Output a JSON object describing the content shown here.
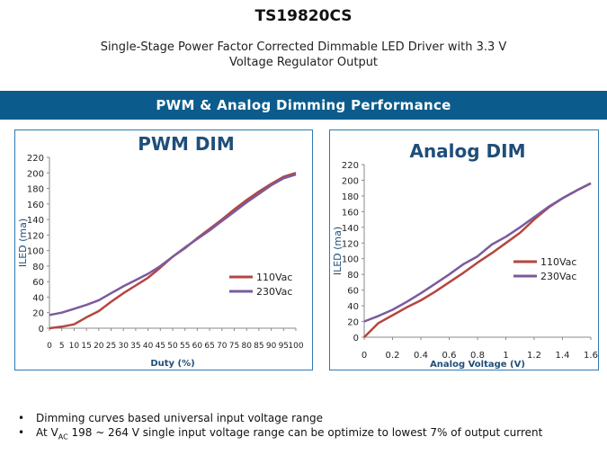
{
  "header": {
    "title": "TS19820CS",
    "subtitle_line1": "Single-Stage Power Factor Corrected Dimmable  LED Driver with 3.3 V",
    "subtitle_line2": "Voltage Regulator Output"
  },
  "banner": {
    "text": "PWM & Analog Dimming Performance"
  },
  "colors": {
    "banner": "#0b5c8c",
    "series_110": "#b5463f",
    "series_230": "#7b5b9e",
    "chart_title": "#1f4e79",
    "border": "#2a7bb5"
  },
  "bullets": {
    "item1": "Dimming curves based universal input voltage range",
    "item2_pre": "At V",
    "item2_sub": "AC",
    "item2_post": " 198 ~ 264 V single input voltage range can be optimize to lowest 7% of output current"
  },
  "chart_data": [
    {
      "type": "line",
      "title": "PWM DIM",
      "xlabel": "Duty (%)",
      "ylabel": "ILED (ma)",
      "xlim": [
        0,
        100
      ],
      "ylim": [
        0,
        220
      ],
      "x_ticks": [
        0,
        5,
        10,
        15,
        20,
        25,
        30,
        35,
        40,
        45,
        50,
        55,
        60,
        65,
        70,
        75,
        80,
        85,
        90,
        95,
        100
      ],
      "y_ticks": [
        0,
        20,
        40,
        60,
        80,
        100,
        120,
        140,
        160,
        180,
        200,
        220
      ],
      "x_tick_labels": [
        "0",
        "5",
        "10",
        "15",
        "20",
        "25",
        "30",
        "35",
        "40",
        "45",
        "50",
        "55",
        "60",
        "65",
        "70",
        "75",
        "80",
        "85",
        "90",
        "95",
        "100"
      ],
      "legend_position": "right",
      "series": [
        {
          "name": "110Vac",
          "x": [
            0,
            5,
            10,
            15,
            20,
            25,
            30,
            35,
            40,
            45,
            50,
            55,
            60,
            65,
            70,
            75,
            80,
            85,
            90,
            95,
            100
          ],
          "values": [
            0,
            2,
            5,
            14,
            22,
            34,
            45,
            55,
            65,
            78,
            92,
            103,
            116,
            128,
            140,
            153,
            165,
            176,
            186,
            195,
            200
          ]
        },
        {
          "name": "230Vac",
          "x": [
            0,
            5,
            10,
            15,
            20,
            25,
            30,
            35,
            40,
            45,
            50,
            55,
            60,
            65,
            70,
            75,
            80,
            85,
            90,
            95,
            100
          ],
          "values": [
            17,
            20,
            25,
            30,
            36,
            45,
            54,
            62,
            70,
            80,
            92,
            104,
            115,
            126,
            138,
            150,
            162,
            173,
            184,
            193,
            198
          ]
        }
      ]
    },
    {
      "type": "line",
      "title": "Analog DIM",
      "xlabel": "Analog Voltage (V)",
      "ylabel": "ILED (ma)",
      "xlim": [
        0,
        1.6
      ],
      "ylim": [
        0,
        220
      ],
      "x_ticks": [
        0,
        0.2,
        0.4,
        0.6,
        0.8,
        1,
        1.2,
        1.4,
        1.6
      ],
      "x_tick_labels": [
        "0",
        "0.2",
        "0.4",
        "0.6",
        "0.8",
        "1",
        "1.2",
        "1.4",
        "1.6"
      ],
      "y_ticks": [
        0,
        20,
        40,
        60,
        80,
        100,
        120,
        140,
        160,
        180,
        200,
        220
      ],
      "legend_position": "right",
      "series": [
        {
          "name": "110Vac",
          "x": [
            0,
            0.1,
            0.2,
            0.3,
            0.4,
            0.5,
            0.6,
            0.7,
            0.8,
            0.9,
            1.0,
            1.1,
            1.2,
            1.3,
            1.4,
            1.5,
            1.6
          ],
          "values": [
            0,
            18,
            28,
            38,
            47,
            58,
            70,
            82,
            95,
            107,
            120,
            133,
            150,
            165,
            177,
            187,
            196
          ]
        },
        {
          "name": "230Vac",
          "x": [
            0,
            0.1,
            0.2,
            0.3,
            0.4,
            0.5,
            0.6,
            0.7,
            0.8,
            0.9,
            1.0,
            1.1,
            1.2,
            1.3,
            1.4,
            1.5,
            1.6
          ],
          "values": [
            20,
            27,
            35,
            45,
            56,
            68,
            80,
            93,
            103,
            118,
            128,
            140,
            153,
            166,
            177,
            187,
            196
          ]
        }
      ]
    }
  ]
}
